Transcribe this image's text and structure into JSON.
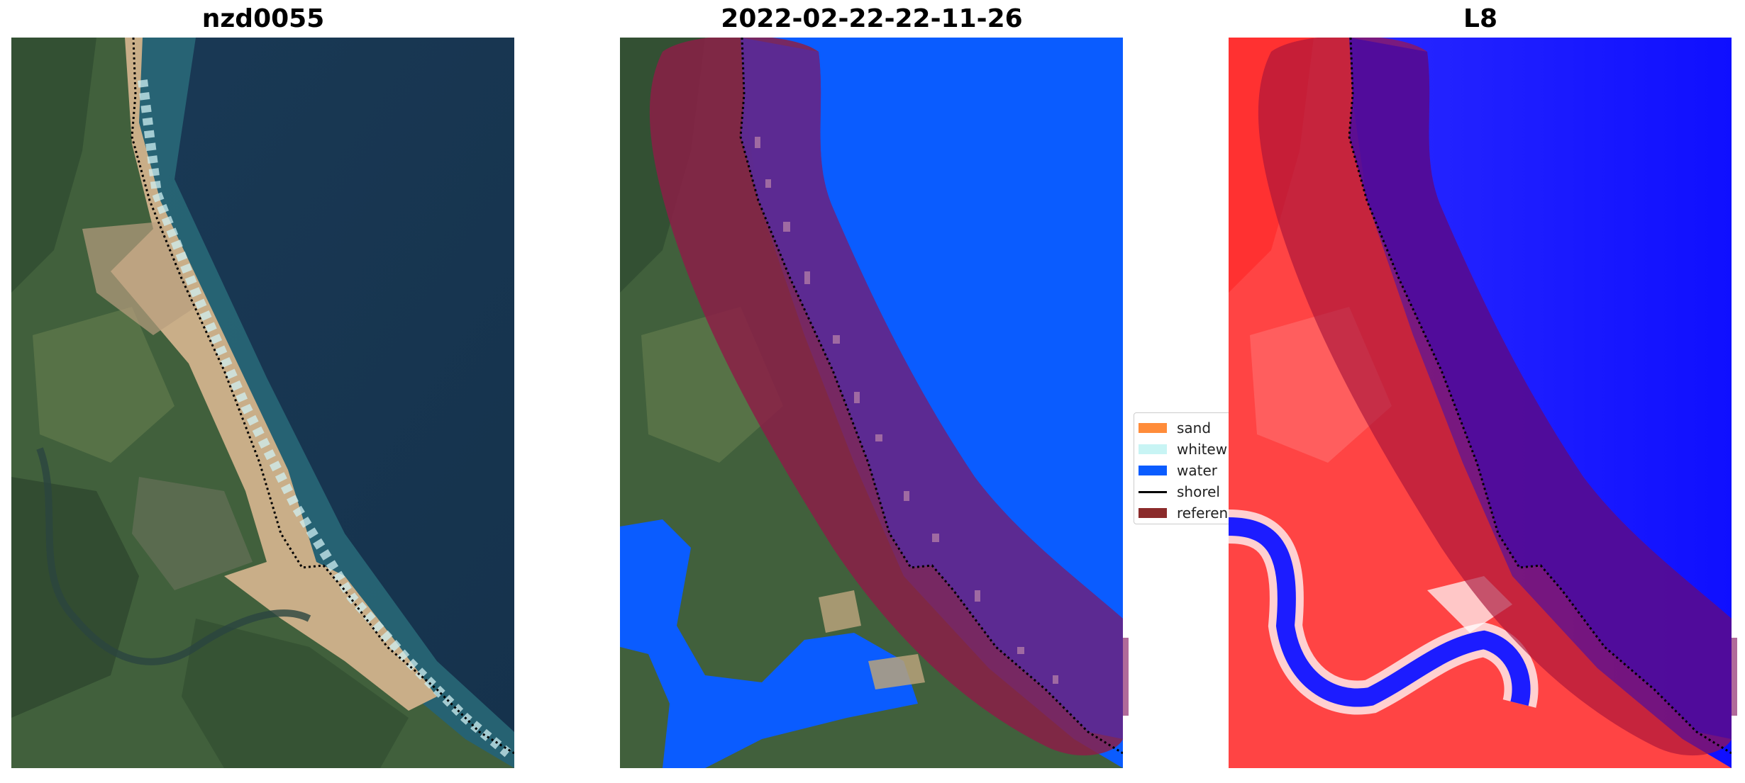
{
  "panels": [
    {
      "id": "rgb",
      "title": "nzd0055"
    },
    {
      "id": "classified",
      "title": "2022-02-22-22-11-26"
    },
    {
      "id": "index",
      "title": "L8"
    }
  ],
  "legend": {
    "items": [
      {
        "label": "sand",
        "color": "#ff8c3a"
      },
      {
        "label": "whitew",
        "color": "#c8f4f4"
      },
      {
        "label": "water",
        "color": "#0a5cff"
      },
      {
        "label": "shorel",
        "color": "#000000"
      },
      {
        "label": "referen",
        "color": "#8b2b2b"
      }
    ]
  },
  "colors": {
    "deep_water": "#163a55",
    "land_green": "#3f5c3a",
    "sand_beige": "#cdb28d",
    "surf_white": "#d8f0f2",
    "class_water": "#0a5cff",
    "reference_overlay": "#8b1e46",
    "index_red": "#ff3434",
    "index_blue": "#1010ff"
  }
}
